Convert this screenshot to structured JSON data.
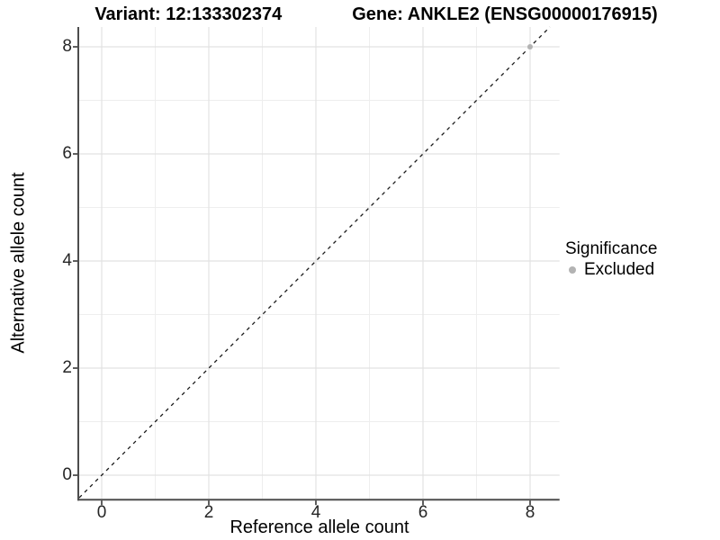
{
  "chart_data": {
    "type": "scatter",
    "title": {
      "left": "Variant: 12:133302374",
      "right": "Gene: ANKLE2 (ENSG00000176915)"
    },
    "xlabel": "Reference allele count",
    "ylabel": "Alternative allele count",
    "x_ticks": [
      0,
      2,
      4,
      6,
      8
    ],
    "y_ticks": [
      0,
      2,
      4,
      6,
      8
    ],
    "x_minor_ticks": [
      1,
      3,
      5,
      7
    ],
    "y_minor_ticks": [
      1,
      3,
      5,
      7
    ],
    "xlim": [
      -0.42,
      8.55
    ],
    "ylim": [
      -0.44,
      8.37
    ],
    "grid": "major and minor gridlines on white panel",
    "legend_position": "right",
    "reference_line": {
      "type": "identity y=x",
      "style": "dashed",
      "color": "#1a1a1a"
    },
    "series": [
      {
        "name": "Excluded",
        "color": "#b3b3b3",
        "points": [
          {
            "x": 8,
            "y": 8
          }
        ]
      }
    ],
    "legend": {
      "title": "Significance",
      "entries": [
        {
          "label": "Excluded",
          "color": "#b3b3b3"
        }
      ]
    },
    "colors": {
      "grid_major": "#e2e2e2",
      "grid_minor": "#eeeeee",
      "axis": "#4d4d4d",
      "tick_text": "#262626",
      "title_text": "#000000",
      "background": "#ffffff"
    }
  }
}
